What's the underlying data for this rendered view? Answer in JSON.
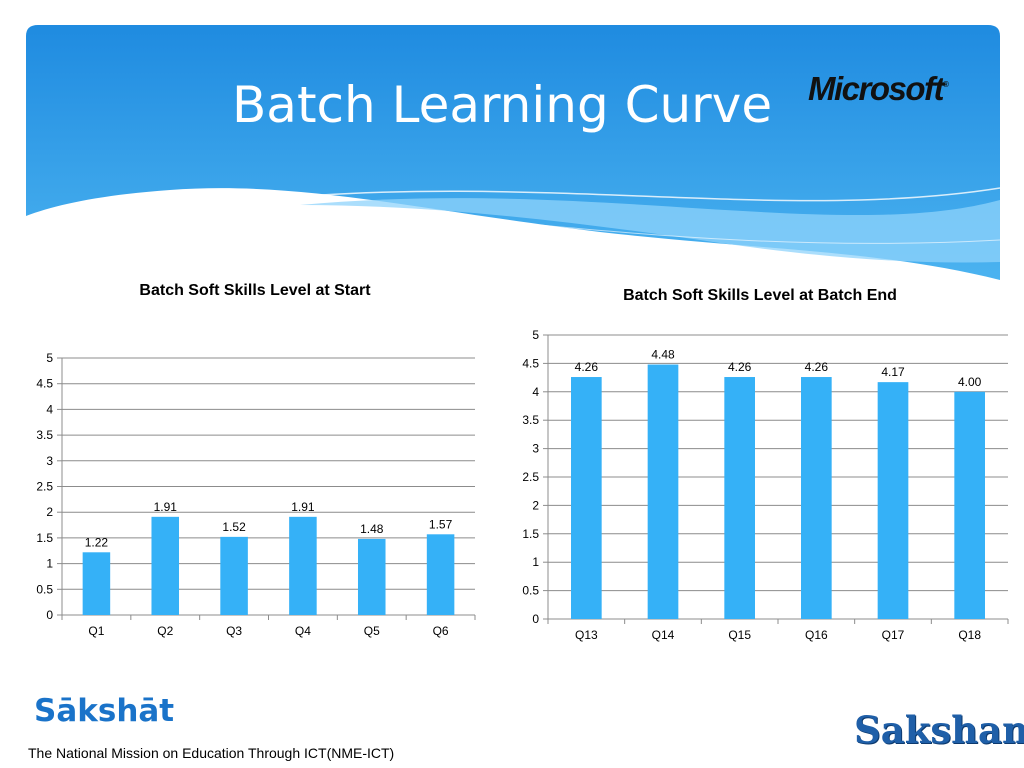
{
  "slide": {
    "title": "Batch Learning Curve",
    "logo_text": "Microsoft",
    "logo_mark": "®",
    "sakshat_logo": "Sākshāt",
    "saksham_logo": "Saksham",
    "footer": "The National Mission on Education Through ICT(NME-ICT)"
  },
  "colors": {
    "banner_top": "#1f8be0",
    "banner_bottom": "#4bb3f0",
    "bar": "#35b1f7",
    "grid": "#8c8c8c"
  },
  "chart_data": [
    {
      "type": "bar",
      "title": "Batch Soft Skills Level at Start",
      "categories": [
        "Q1",
        "Q2",
        "Q3",
        "Q4",
        "Q5",
        "Q6"
      ],
      "values": [
        1.22,
        1.91,
        1.52,
        1.91,
        1.48,
        1.57
      ],
      "value_labels": [
        "1.22",
        "1.91",
        "1.52",
        "1.91",
        "1.48",
        "1.57"
      ],
      "ylim": [
        0,
        5
      ],
      "yticks": [
        "0",
        "0.5",
        "1",
        "1.5",
        "2",
        "2.5",
        "3",
        "3.5",
        "4",
        "4.5",
        "5"
      ],
      "grid": true,
      "legend": "none"
    },
    {
      "type": "bar",
      "title": "Batch Soft Skills Level at Batch End",
      "categories": [
        "Q13",
        "Q14",
        "Q15",
        "Q16",
        "Q17",
        "Q18"
      ],
      "values": [
        4.26,
        4.48,
        4.26,
        4.26,
        4.17,
        4.0
      ],
      "value_labels": [
        "4.26",
        "4.48",
        "4.26",
        "4.26",
        "4.17",
        "4.00"
      ],
      "ylim": [
        0,
        5
      ],
      "yticks": [
        "0",
        "0.5",
        "1",
        "1.5",
        "2",
        "2.5",
        "3",
        "3.5",
        "4",
        "4.5",
        "5"
      ],
      "grid": true,
      "legend": "none"
    }
  ]
}
